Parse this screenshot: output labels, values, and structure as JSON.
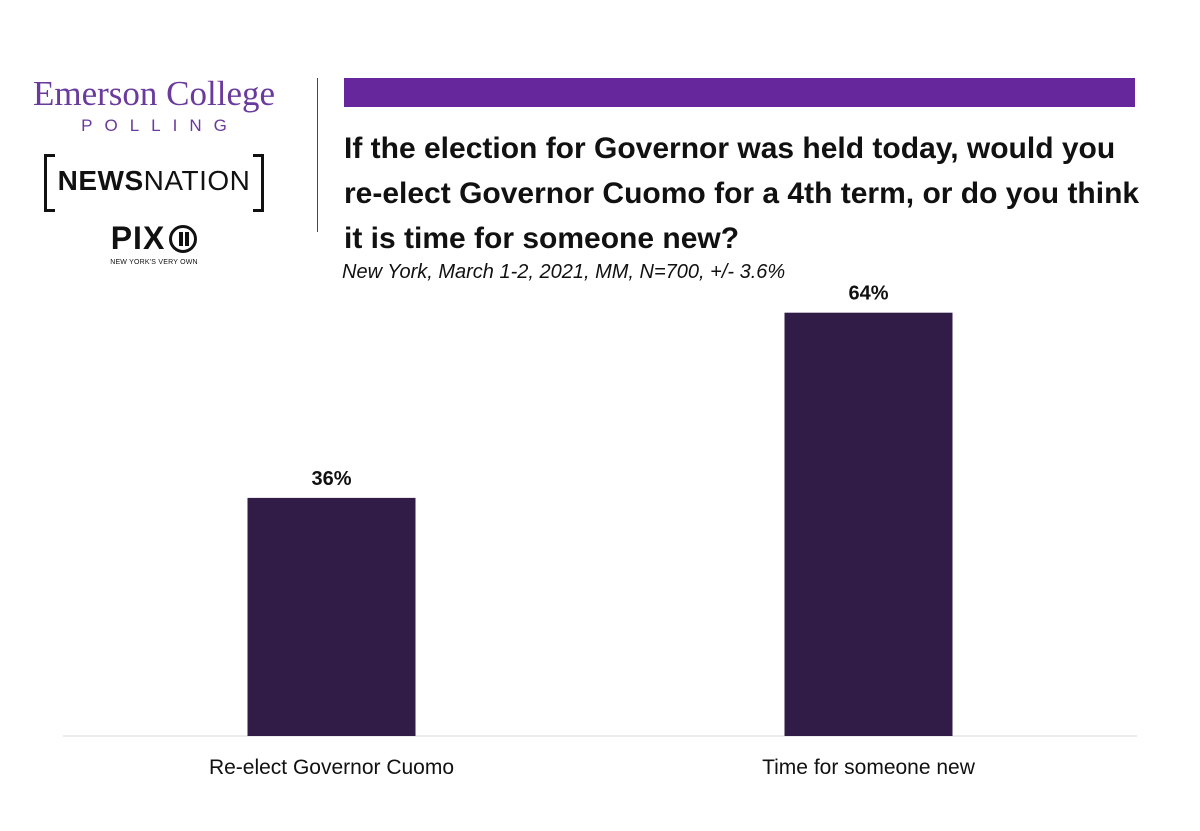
{
  "logos": {
    "emerson_name": "Emerson College",
    "emerson_sub": "POLLING",
    "newsnation_bold": "NEWS",
    "newsnation_rest": "NATION",
    "pix_word": "PIX",
    "pix_tagline": "NEW YORK'S VERY OWN"
  },
  "colors": {
    "accent": "#65279b",
    "bar": "#301c47",
    "brand_text": "#6a3a9c"
  },
  "chart_data": {
    "type": "bar",
    "title": "If the election for Governor was held today, would you re-elect Governor Cuomo for a 4th term, or do you think it is time for someone new?",
    "subtitle": "New York, March 1-2, 2021, MM, N=700, +/- 3.6%",
    "categories": [
      "Re-elect Governor Cuomo",
      "Time for someone new"
    ],
    "values": [
      36,
      64
    ],
    "value_labels": [
      "36%",
      "64%"
    ],
    "xlabel": "",
    "ylabel": "",
    "ylim": [
      0,
      70
    ],
    "grid": false,
    "legend": "none"
  }
}
